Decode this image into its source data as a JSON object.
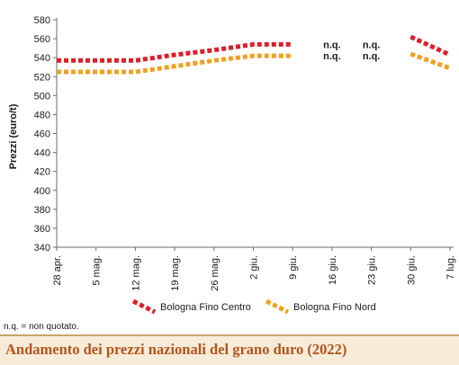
{
  "title": "Andamento dei prezzi nazionali del grano duro (2022)",
  "note": "n.q. = non quotato.",
  "nq_label": "n.q.",
  "chart_data": {
    "type": "line",
    "ylabel": "Prezzi (euro/t)",
    "xlabel": "",
    "ylim": [
      340,
      580
    ],
    "yticks": [
      340,
      360,
      380,
      400,
      420,
      440,
      460,
      480,
      500,
      520,
      540,
      560,
      580
    ],
    "categories": [
      "28 apr.",
      "5 mag.",
      "12 mag.",
      "19 mag.",
      "26 mag.",
      "2 giu.",
      "9 giu.",
      "16 giu.",
      "23 giu.",
      "30 giu.",
      "7 lug."
    ],
    "grid": false,
    "legend_position": "bottom",
    "series": [
      {
        "name": "Bologna Fino Centro",
        "color": "#d9202a",
        "values": [
          537,
          537,
          537,
          543,
          548,
          554,
          554,
          null,
          null,
          562,
          543
        ]
      },
      {
        "name": "Bologna Fino Nord",
        "color": "#f0a020",
        "values": [
          525,
          525,
          525,
          531,
          537,
          542,
          542,
          null,
          null,
          544,
          529
        ]
      }
    ],
    "annotations": [
      {
        "category": "16 giu.",
        "text": "n.q."
      },
      {
        "category": "23 giu.",
        "text": "n.q."
      }
    ]
  }
}
